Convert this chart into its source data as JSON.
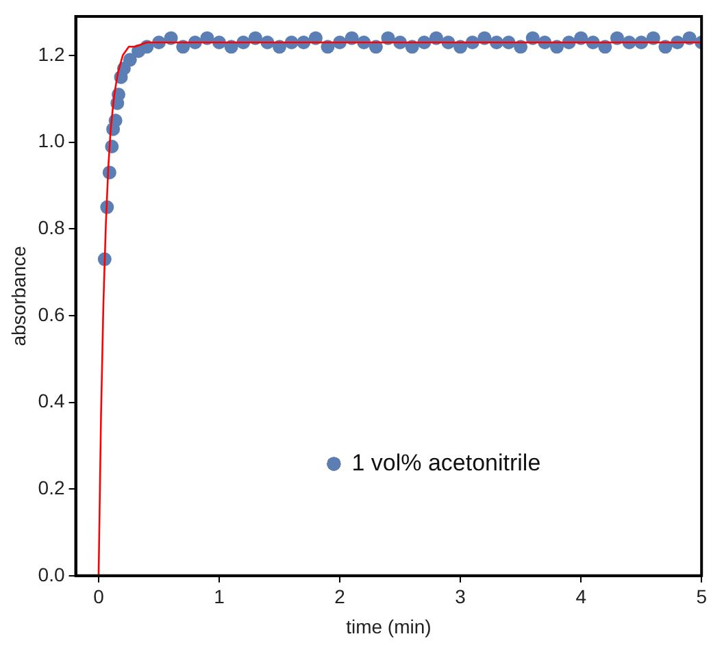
{
  "chart_data": {
    "type": "scatter",
    "xlabel": "time (min)",
    "ylabel": "absorbance",
    "xlim": [
      -0.19,
      5
    ],
    "ylim": [
      0,
      1.29
    ],
    "xticks": [
      0,
      1,
      2,
      3,
      4,
      5
    ],
    "yticks": [
      {
        "value": 0,
        "label": "0.0"
      },
      {
        "value": 0.2,
        "label": "0.2"
      },
      {
        "value": 0.4,
        "label": "0.4"
      },
      {
        "value": 0.6,
        "label": "0.6"
      },
      {
        "value": 0.8,
        "label": "0.8"
      },
      {
        "value": 1.0,
        "label": "1.0"
      },
      {
        "value": 1.2,
        "label": "1.2"
      }
    ],
    "grid": false,
    "legend": "bottom",
    "marker": "circle",
    "series": [
      {
        "name": "1 vol% acetonitrile",
        "color": "#5b7fb5",
        "x": [
          0.05,
          0.07,
          0.09,
          0.11,
          0.12,
          0.14,
          0.155,
          0.165,
          0.185,
          0.21,
          0.26,
          0.33,
          0.4,
          0.5,
          0.6,
          0.7,
          0.8,
          0.9,
          1.0,
          1.1,
          1.2,
          1.3,
          1.4,
          1.5,
          1.6,
          1.7,
          1.8,
          1.9,
          2.0,
          2.1,
          2.2,
          2.3,
          2.4,
          2.5,
          2.6,
          2.7,
          2.8,
          2.9,
          3.0,
          3.1,
          3.2,
          3.3,
          3.4,
          3.5,
          3.6,
          3.7,
          3.8,
          3.9,
          4.0,
          4.1,
          4.2,
          4.3,
          4.4,
          4.5,
          4.6,
          4.7,
          4.8,
          4.9,
          5.0
        ],
        "values": [
          0.73,
          0.85,
          0.93,
          0.99,
          1.03,
          1.05,
          1.09,
          1.11,
          1.15,
          1.17,
          1.19,
          1.21,
          1.22,
          1.23,
          1.24,
          1.22,
          1.23,
          1.24,
          1.23,
          1.22,
          1.23,
          1.24,
          1.23,
          1.22,
          1.23,
          1.23,
          1.24,
          1.22,
          1.23,
          1.24,
          1.23,
          1.22,
          1.24,
          1.23,
          1.22,
          1.23,
          1.24,
          1.23,
          1.22,
          1.23,
          1.24,
          1.23,
          1.23,
          1.22,
          1.24,
          1.23,
          1.22,
          1.23,
          1.24,
          1.23,
          1.22,
          1.24,
          1.23,
          1.23,
          1.24,
          1.22,
          1.23,
          1.24,
          1.23
        ]
      },
      {
        "type": "line",
        "color": "#ff0000",
        "marker": "none",
        "x": [
          0,
          0.02,
          0.04,
          0.06,
          0.08,
          0.1,
          0.13,
          0.16,
          0.2,
          0.25,
          0.3,
          0.4,
          0.5,
          1,
          2,
          3,
          4,
          5
        ],
        "values": [
          0,
          0.37,
          0.63,
          0.81,
          0.94,
          1.03,
          1.11,
          1.16,
          1.2,
          1.22,
          1.22,
          1.23,
          1.23,
          1.23,
          1.23,
          1.23,
          1.23,
          1.23
        ]
      }
    ]
  }
}
